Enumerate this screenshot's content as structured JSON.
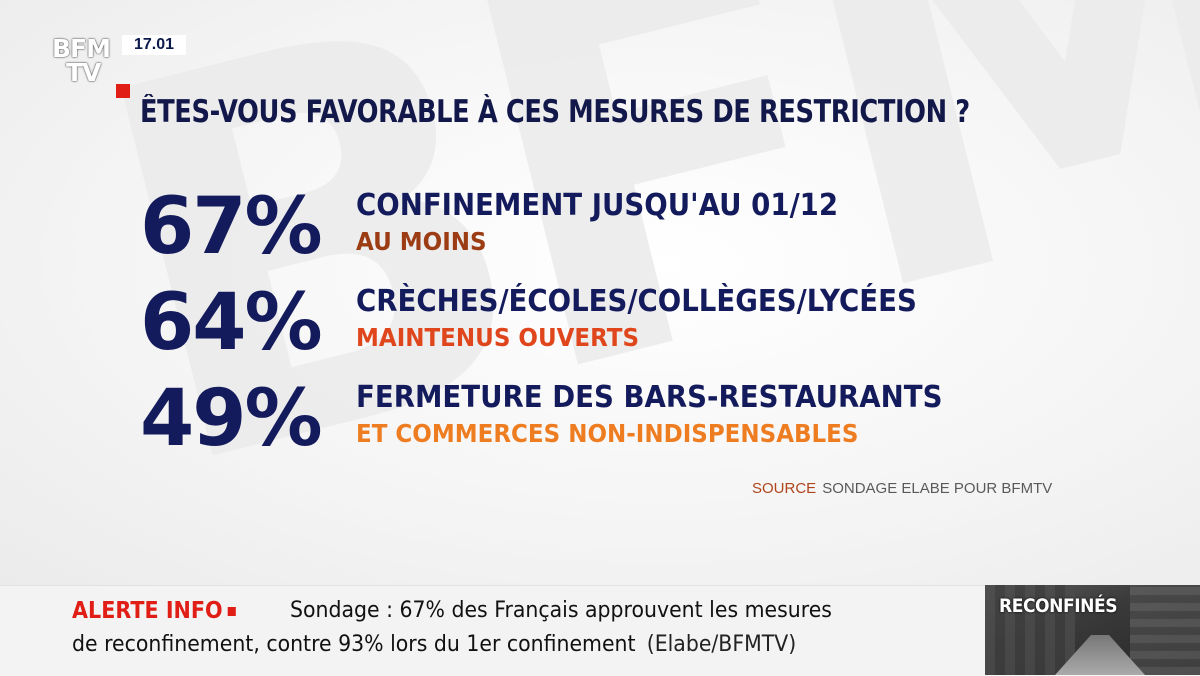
{
  "channel": {
    "logo_line1": "BFM",
    "logo_line2": "TV",
    "time": "17.01"
  },
  "question": "ÊTES-VOUS FAVORABLE À CES MESURES DE RESTRICTION ?",
  "results": [
    {
      "percent": "67%",
      "label": "CONFINEMENT JUSQU'AU 01/12",
      "sublabel": "AU MOINS",
      "sub_color": "#9c3c14"
    },
    {
      "percent": "64%",
      "label": "CRÈCHES/ÉCOLES/COLLÈGES/LYCÉES",
      "sublabel": "MAINTENUS OUVERTS",
      "sub_color": "#e0461c"
    },
    {
      "percent": "49%",
      "label": "FERMETURE DES BARS-RESTAURANTS",
      "sublabel": "ET COMMERCES NON-INDISPENSABLES",
      "sub_color": "#ee7d22"
    }
  ],
  "source": {
    "label": "SOURCE",
    "value": "SONDAGE ELABE POUR BFMTV"
  },
  "ticker": {
    "alert": "ALERTE INFO",
    "line1": "Sondage : 67% des Français approuvent les mesures",
    "line2": "de reconfinement, contre 93% lors du 1er confinement",
    "credit": "(Elabe/BFMTV)"
  },
  "thumbnail": {
    "caption": "RECONFINÉS"
  },
  "colors": {
    "navy": "#141b5c",
    "alert_red": "#e01e15"
  }
}
